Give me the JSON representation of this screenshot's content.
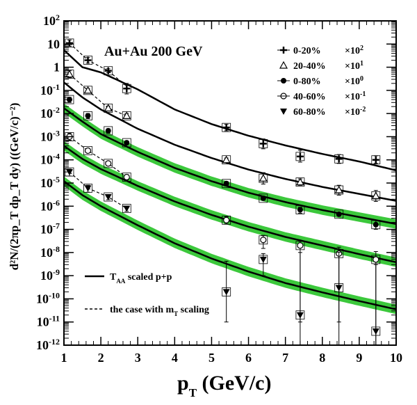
{
  "chart_data": {
    "type": "scatter",
    "title": "Au+Au 200 GeV",
    "xlabel_main": "p",
    "xlabel_sub": "T",
    "xlabel_rest": " (GeV/c)",
    "ylabel": "d²N/(2πp_T dp_T dy) ((GeV/c)⁻²)",
    "xlim": [
      1,
      10
    ],
    "ylim": [
      1e-12,
      100
    ],
    "y_scale": "log",
    "x_ticks": [
      1,
      2,
      3,
      4,
      5,
      6,
      7,
      8,
      9,
      10
    ],
    "y_tick_exponents": [
      -12,
      -11,
      -10,
      -9,
      -8,
      -7,
      -6,
      -5,
      -4,
      -3,
      -2,
      -1,
      0,
      1,
      2
    ],
    "grid": false,
    "legend_position": "top-right",
    "series": [
      {
        "name": "0-20%",
        "scale_base": "×10",
        "scale_exp": "2",
        "marker": "plus",
        "x": [
          1.15,
          1.65,
          2.2,
          2.7,
          5.4,
          6.4,
          7.4,
          8.45,
          9.45
        ],
        "y": [
          11,
          2.0,
          0.7,
          0.12,
          0.0025,
          0.0005,
          0.00014,
          0.00011,
          0.0001
        ],
        "yerr_up": [
          4,
          0.6,
          0.15,
          0.08,
          0.0009,
          0.0003,
          0.00012,
          6e-05,
          5e-05
        ],
        "yerr_down": [
          3,
          0.5,
          0.12,
          0.05,
          0.0007,
          0.0002,
          6e-05,
          4e-05,
          3e-05
        ],
        "dashed_x": [
          1.15,
          1.65,
          2.2,
          2.7
        ],
        "dashed_y": [
          11,
          2.0,
          0.7,
          0.15
        ],
        "curve_x": [
          1,
          1.5,
          2,
          3,
          4,
          5,
          6,
          7,
          8,
          9,
          10
        ],
        "curve_y": [
          5.5,
          1.0,
          0.6,
          0.11,
          0.015,
          0.0035,
          0.0011,
          0.00042,
          0.00018,
          8.5e-05,
          3.5e-05
        ],
        "band": false
      },
      {
        "name": "20-40%",
        "scale_base": "×10",
        "scale_exp": "1",
        "marker": "open-triangle-up",
        "x": [
          1.15,
          1.65,
          2.2,
          2.7,
          5.4,
          6.4,
          7.4,
          8.45,
          9.45
        ],
        "y": [
          0.5,
          0.1,
          0.017,
          0.008,
          0.0001,
          1.6e-05,
          1.1e-05,
          5e-06,
          2.8e-06
        ],
        "yerr_up": [
          0.2,
          0.02,
          0.004,
          0.002,
          2e-05,
          1.2e-05,
          4e-06,
          3e-06,
          2e-06
        ],
        "yerr_down": [
          0.15,
          0.02,
          0.003,
          0.002,
          2e-05,
          7e-06,
          3e-06,
          2e-06,
          1.2e-06
        ],
        "dashed_x": [
          1.15,
          1.65,
          2.2,
          2.7
        ],
        "dashed_y": [
          0.5,
          0.1,
          0.017,
          0.008
        ],
        "curve_x": [
          1,
          1.5,
          2,
          3,
          4,
          5,
          6,
          7,
          8,
          9,
          10
        ],
        "curve_y": [
          0.22,
          0.05,
          0.015,
          0.0022,
          0.00045,
          0.00012,
          3.8e-05,
          1.5e-05,
          6.8e-06,
          3.4e-06,
          1.7e-06
        ],
        "band": false
      },
      {
        "name": "0-80%",
        "scale_base": "×10",
        "scale_exp": "0",
        "marker": "filled-circle",
        "x": [
          1.15,
          1.65,
          2.2,
          2.7,
          5.4,
          6.4,
          7.4,
          8.45,
          9.45
        ],
        "y": [
          0.04,
          0.008,
          0.0018,
          0.00055,
          9.5e-06,
          2.2e-06,
          7e-07,
          4.5e-07,
          1.6e-07
        ],
        "yerr_up": [
          0.01,
          0.002,
          0.0004,
          0.0001,
          2e-06,
          5e-07,
          2e-07,
          8e-08,
          8e-08
        ],
        "yerr_down": [
          0.01,
          0.002,
          0.0004,
          0.0001,
          2e-06,
          4e-07,
          2e-07,
          8e-08,
          6e-08
        ],
        "dashed_x": [],
        "dashed_y": [],
        "curve_x": [
          1,
          1.5,
          2,
          3,
          4,
          5,
          6,
          7,
          8,
          9,
          10
        ],
        "curve_y": [
          0.017,
          0.0045,
          0.0013,
          0.00022,
          4.5e-05,
          1.2e-05,
          3.8e-06,
          1.5e-06,
          6.8e-07,
          3.4e-07,
          1.7e-07
        ],
        "band": true
      },
      {
        "name": "40-60%",
        "scale_base": "×10",
        "scale_exp": "-1",
        "marker": "open-circle",
        "x": [
          1.15,
          1.65,
          2.2,
          2.7,
          5.4,
          6.4,
          7.4,
          8.45,
          9.45
        ],
        "y": [
          0.001,
          0.00025,
          7e-05,
          1.8e-05,
          2.5e-07,
          3.5e-08,
          2e-08,
          9e-09,
          5e-09
        ],
        "yerr_up": [
          0.0004,
          6e-05,
          1.5e-05,
          5e-06,
          1e-07,
          2e-08,
          1e-08,
          8e-09,
          6e-09
        ],
        "yerr_down": [
          0.0003,
          5e-05,
          1.2e-05,
          4e-06,
          8e-08,
          2e-08,
          1.999e-08,
          8.999e-09,
          4.999e-09
        ],
        "dashed_x": [
          1.15,
          1.65,
          2.2,
          2.7
        ],
        "dashed_y": [
          0.001,
          0.00025,
          7e-05,
          1.8e-05
        ],
        "curve_x": [
          1,
          1.5,
          2,
          3,
          4,
          5,
          6,
          7,
          8,
          9,
          10
        ],
        "curve_y": [
          0.0004,
          0.00011,
          4e-05,
          7.5e-06,
          1.6e-06,
          4.2e-07,
          1.3e-07,
          4.7e-08,
          2e-08,
          8.5e-09,
          3.8e-09
        ],
        "band": true
      },
      {
        "name": "60-80%",
        "scale_base": "×10",
        "scale_exp": "-2",
        "marker": "filled-triangle-down",
        "x": [
          1.15,
          1.65,
          2.2,
          2.7,
          5.4,
          6.4,
          7.4,
          8.45,
          9.45
        ],
        "y": [
          3e-05,
          6e-06,
          2.5e-06,
          8e-07,
          2e-10,
          5e-09,
          2e-11,
          3e-10,
          4e-12
        ],
        "yerr_up": [
          1e-05,
          2e-06,
          6e-07,
          2e-07,
          4e-09,
          4e-09,
          1e-08,
          1e-08,
          3e-09
        ],
        "yerr_down": [
          1e-05,
          2e-06,
          6e-07,
          2e-07,
          1.9e-10,
          4e-09,
          1.99e-11,
          2.9e-10,
          3.9e-12
        ],
        "dashed_x": [
          1.15,
          1.65,
          2.2,
          2.7
        ],
        "dashed_y": [
          3e-05,
          6e-06,
          2.5e-06,
          8e-07
        ],
        "curve_x": [
          1,
          1.5,
          2,
          3,
          4,
          5,
          6,
          7,
          8,
          9,
          10
        ],
        "curve_y": [
          1.2e-05,
          3e-06,
          1e-06,
          1.5e-07,
          2.5e-08,
          5.5e-09,
          1.5e-09,
          4.8e-10,
          1.9e-10,
          8e-11,
          3.5e-11
        ],
        "band": true
      }
    ],
    "annotations": {
      "solid_line_label_main": "T",
      "solid_line_label_sub": "AA",
      "solid_line_label_rest": " scaled p+p",
      "dashed_line_label_main": "the case with m",
      "dashed_line_label_sub": "T",
      "dashed_line_label_rest": " scaling"
    },
    "colors": {
      "band": "#3cc83c",
      "line": "#000000"
    }
  }
}
